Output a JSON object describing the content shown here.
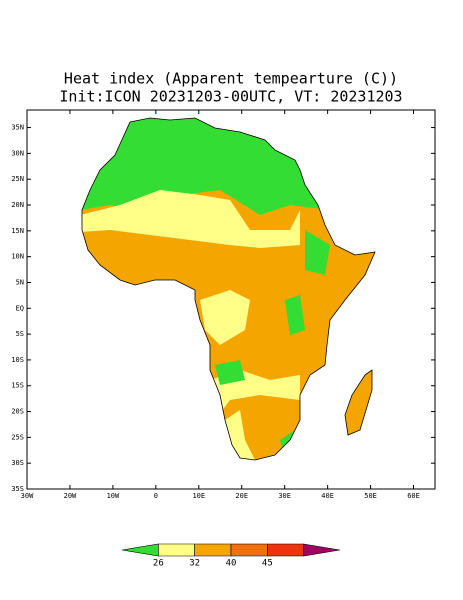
{
  "map": {
    "title": "Heat index (Apparent tempearture (C))",
    "subtitle": "Init:ICON 20231203-00UTC, VT: 20231203",
    "lon_range": [
      -30,
      65
    ],
    "lat_range": [
      -35,
      38.4
    ],
    "lat_ticks": [
      {
        "value": 35,
        "label": "35N"
      },
      {
        "value": 30,
        "label": "30N"
      },
      {
        "value": 25,
        "label": "25N"
      },
      {
        "value": 20,
        "label": "20N"
      },
      {
        "value": 15,
        "label": "15N"
      },
      {
        "value": 10,
        "label": "10N"
      },
      {
        "value": 5,
        "label": "5N"
      },
      {
        "value": 0,
        "label": "EQ"
      },
      {
        "value": -5,
        "label": "5S"
      },
      {
        "value": -10,
        "label": "10S"
      },
      {
        "value": -15,
        "label": "15S"
      },
      {
        "value": -20,
        "label": "20S"
      },
      {
        "value": -25,
        "label": "25S"
      },
      {
        "value": -30,
        "label": "30S"
      },
      {
        "value": -35,
        "label": "35S"
      }
    ],
    "lon_ticks": [
      {
        "value": -30,
        "label": "30W"
      },
      {
        "value": -20,
        "label": "20W"
      },
      {
        "value": -10,
        "label": "10W"
      },
      0,
      {
        "value": 10,
        "label": "10E"
      },
      {
        "value": 20,
        "label": "20E"
      },
      {
        "value": 30,
        "label": "30E"
      },
      {
        "value": 40,
        "label": "40E"
      },
      {
        "value": 50,
        "label": "50E"
      },
      {
        "value": 60,
        "label": "60E"
      }
    ],
    "colorbar": {
      "levels": [
        26,
        32,
        40,
        45
      ],
      "colors": [
        "#33dd33",
        "#ffff88",
        "#f5a500",
        "#f07010",
        "#ee3311",
        "#a00060"
      ]
    }
  }
}
